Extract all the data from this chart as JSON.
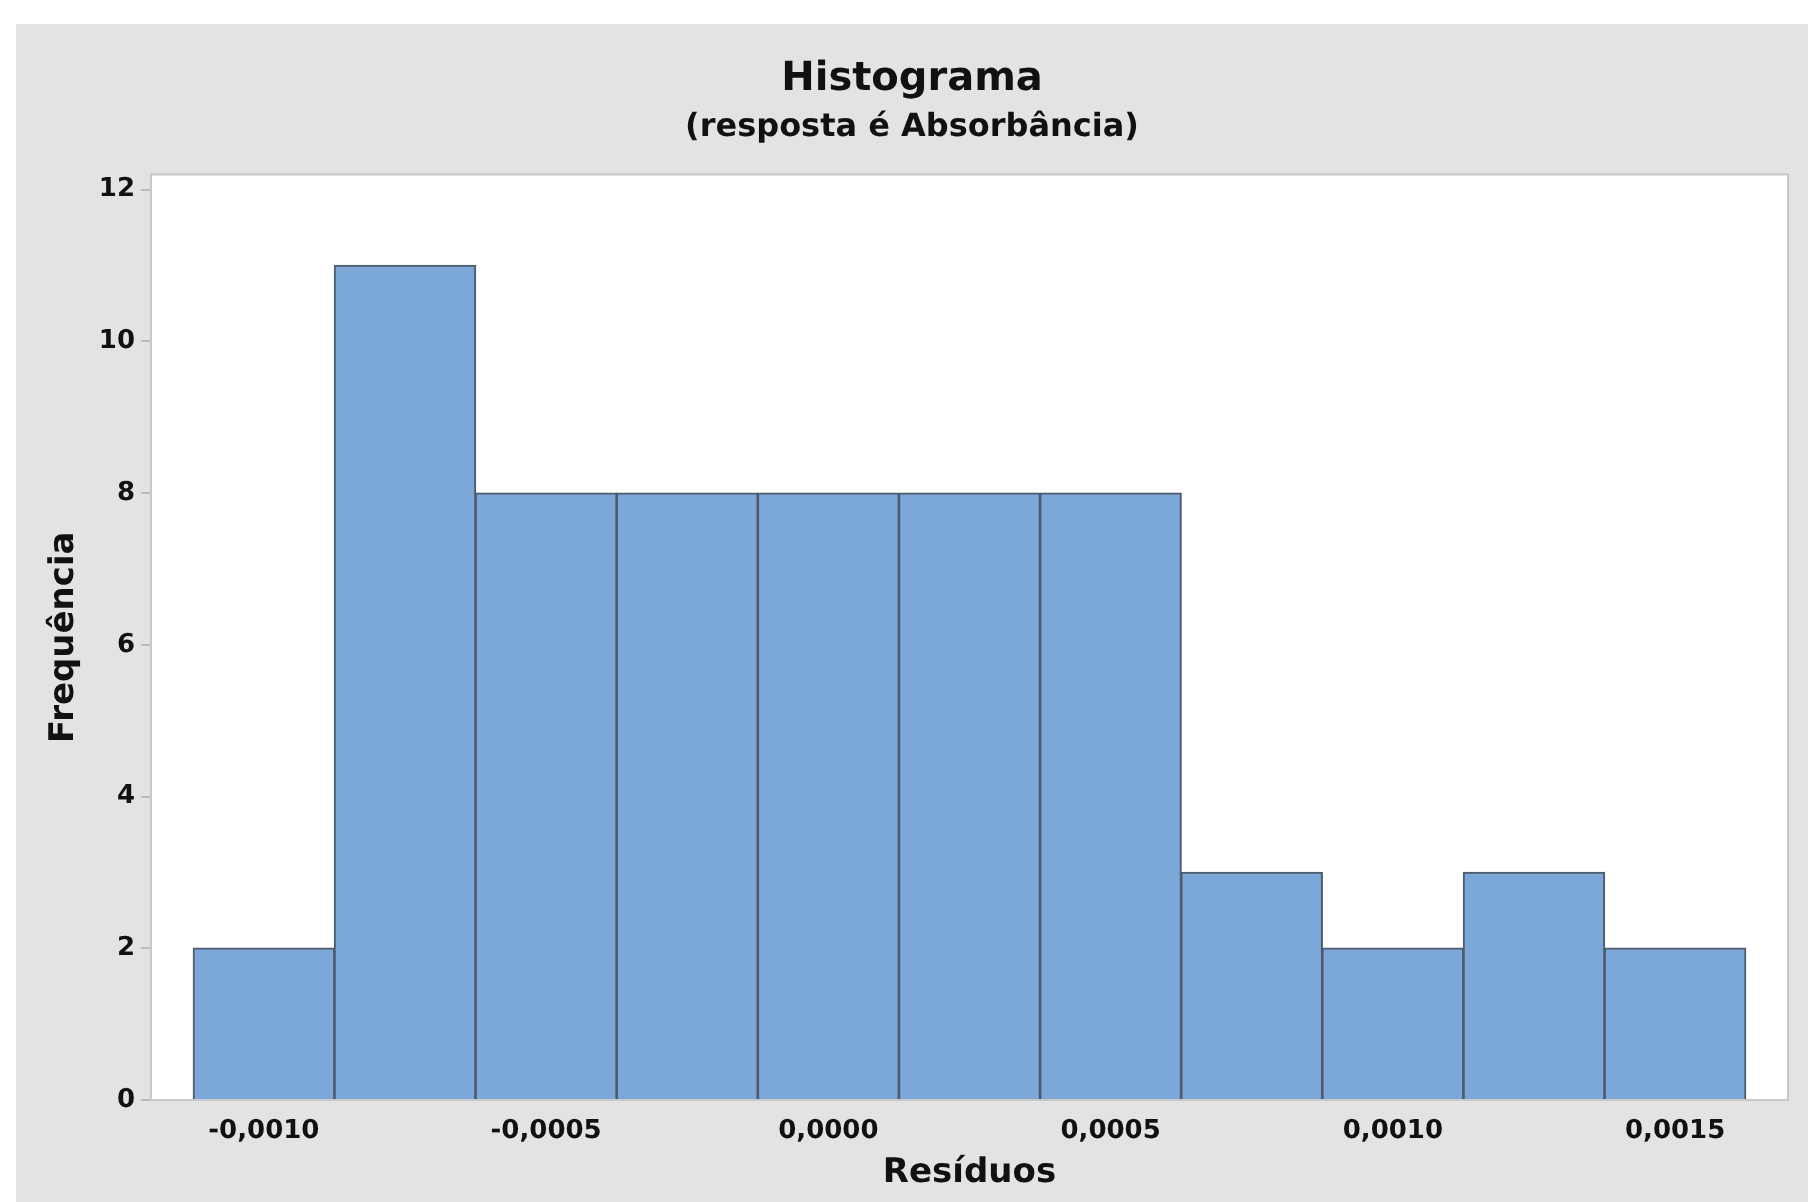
{
  "chart_data": {
    "type": "histogram",
    "title": "Histograma",
    "subtitle": "(resposta é Absorbância)",
    "xlabel": "Resíduos",
    "ylabel": "Frequência",
    "bins": [
      -0.001125,
      -0.000875,
      -0.000625,
      -0.000375,
      -0.000125,
      0.000125,
      0.000375,
      0.000625,
      0.000875,
      0.001125,
      0.001375,
      0.001625
    ],
    "values": [
      2,
      11,
      8,
      8,
      8,
      8,
      8,
      3,
      2,
      3,
      2
    ],
    "color": "#7ba7d9",
    "xlim": [
      -0.0012,
      0.0017
    ],
    "xticks": [
      {
        "value": -0.001,
        "label": "-0,0010"
      },
      {
        "value": -0.0005,
        "label": "-0,0005"
      },
      {
        "value": 0,
        "label": "0,0000"
      },
      {
        "value": 0.0005,
        "label": "0,0005"
      },
      {
        "value": 0.001,
        "label": "0,0010"
      },
      {
        "value": 0.0015,
        "label": "0,0015"
      }
    ],
    "ylim": [
      0,
      12.2
    ],
    "yticks": [
      0,
      2,
      4,
      6,
      8,
      10,
      12
    ],
    "grid": false,
    "legend": false
  }
}
